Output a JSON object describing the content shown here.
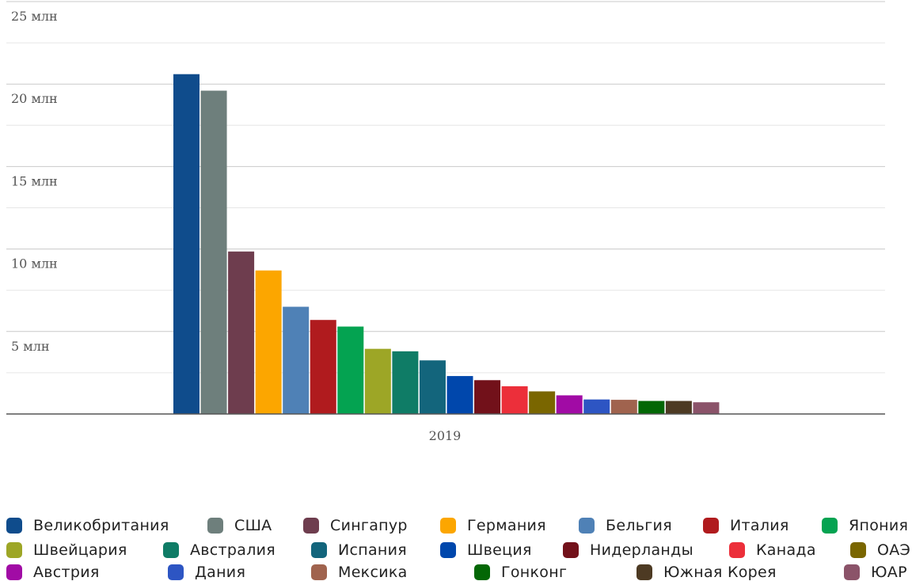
{
  "chart_data": {
    "type": "bar",
    "categories": [
      "2019"
    ],
    "ylim": [
      0,
      25000000
    ],
    "y_ticks": [
      {
        "value": 5000000,
        "label": "5 млн"
      },
      {
        "value": 10000000,
        "label": "10 млн"
      },
      {
        "value": 15000000,
        "label": "15 млн"
      },
      {
        "value": 20000000,
        "label": "20 млн"
      },
      {
        "value": 25000000,
        "label": "25 млн"
      }
    ],
    "grid": true,
    "legend_position": "bottom",
    "series": [
      {
        "name": "Великобритания",
        "color": "#0f4c8c",
        "values": [
          20600000
        ]
      },
      {
        "name": "США",
        "color": "#6e7f7c",
        "values": [
          19600000
        ]
      },
      {
        "name": "Сингапур",
        "color": "#6e3d4e",
        "values": [
          9850000
        ]
      },
      {
        "name": "Германия",
        "color": "#fca600",
        "values": [
          8700000
        ]
      },
      {
        "name": "Бельгия",
        "color": "#4f81b6",
        "values": [
          6500000
        ]
      },
      {
        "name": "Италия",
        "color": "#b01b1e",
        "values": [
          5700000
        ]
      },
      {
        "name": "Япония",
        "color": "#04a351",
        "values": [
          5300000
        ]
      },
      {
        "name": "Швейцария",
        "color": "#9da626",
        "values": [
          3950000
        ]
      },
      {
        "name": "Австралия",
        "color": "#0f7c66",
        "values": [
          3800000
        ]
      },
      {
        "name": "Испания",
        "color": "#13657c",
        "values": [
          3250000
        ]
      },
      {
        "name": "Швеция",
        "color": "#0047ac",
        "values": [
          2300000
        ]
      },
      {
        "name": "Нидерланды",
        "color": "#72111a",
        "values": [
          2050000
        ]
      },
      {
        "name": "Канада",
        "color": "#ec2f3a",
        "values": [
          1680000
        ]
      },
      {
        "name": "ОАЭ",
        "color": "#7a6600",
        "values": [
          1370000
        ]
      },
      {
        "name": "Австрия",
        "color": "#a10ba5",
        "values": [
          1130000
        ]
      },
      {
        "name": "Дания",
        "color": "#2d55c3",
        "values": [
          880000
        ]
      },
      {
        "name": "Мексика",
        "color": "#a0634e",
        "values": [
          860000
        ]
      },
      {
        "name": "Гонконг",
        "color": "#036705",
        "values": [
          790000
        ]
      },
      {
        "name": "Южная Корея",
        "color": "#4d3a23",
        "values": [
          790000
        ]
      },
      {
        "name": "ЮАР",
        "color": "#8b5369",
        "values": [
          710000
        ]
      }
    ]
  }
}
